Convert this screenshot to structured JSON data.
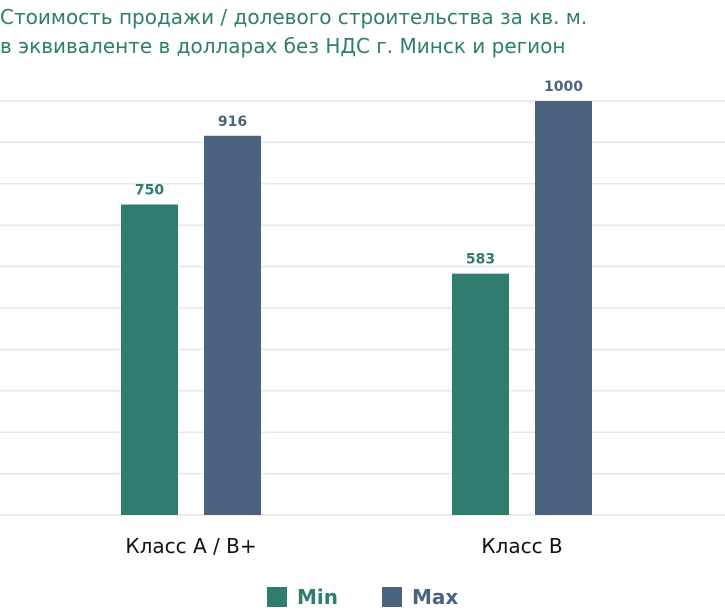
{
  "title": {
    "line1": "Стоимость продажи / долевого строительства за кв. м.",
    "line2": "в эквиваленте в долларах без НДС г. Минск и регион"
  },
  "colors": {
    "min": "#2e7d6e",
    "max": "#4a6480",
    "title": "#2e7d6e",
    "grid": "#e6e6e6"
  },
  "chart_data": {
    "type": "bar",
    "categories": [
      "Класс А / В+",
      "Класс В"
    ],
    "series": [
      {
        "name": "Min",
        "values": [
          750,
          583
        ]
      },
      {
        "name": "Max",
        "values": [
          916,
          1000
        ]
      }
    ],
    "ylim": [
      0,
      1000
    ],
    "grid": true,
    "legend": "bottom"
  }
}
